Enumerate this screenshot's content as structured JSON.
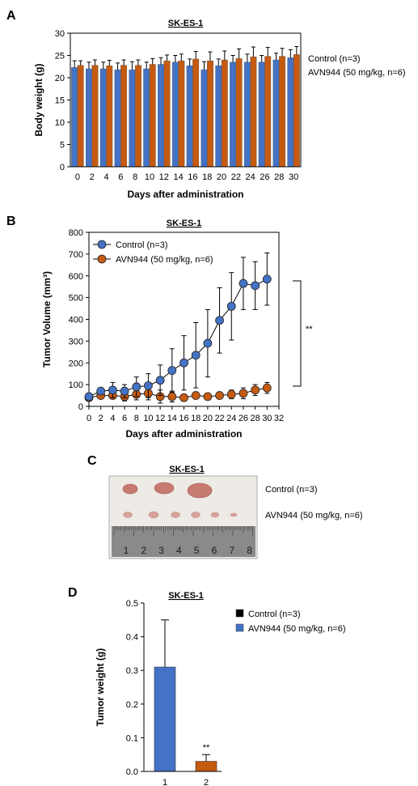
{
  "colors": {
    "blue": "#4472C4",
    "orange": "#C55A11",
    "black": "#000000"
  },
  "chart_data": [
    {
      "panel": "A",
      "type": "bar",
      "title": "SK-ES-1",
      "xlabel": "Days after administration",
      "ylabel": "Body weight (g)",
      "ylim": [
        0,
        30
      ],
      "yticks": [
        "0",
        "5",
        "10",
        "15",
        "20",
        "25",
        "30"
      ],
      "categories": [
        "0",
        "2",
        "4",
        "6",
        "8",
        "10",
        "12",
        "14",
        "16",
        "18",
        "20",
        "22",
        "24",
        "26",
        "28",
        "30"
      ],
      "legend": "right",
      "series": [
        {
          "name": "Control (n=3)",
          "color": "#4472C4",
          "values": [
            22.3,
            22.0,
            22.0,
            21.8,
            21.8,
            22.0,
            23.0,
            23.5,
            22.7,
            21.8,
            22.7,
            23.5,
            23.5,
            23.5,
            24.0,
            24.5
          ],
          "errors": [
            1.5,
            1.5,
            1.5,
            1.5,
            1.8,
            1.5,
            1.5,
            1.5,
            1.5,
            1.8,
            1.5,
            1.5,
            1.8,
            1.5,
            1.5,
            1.8
          ]
        },
        {
          "name": "AVN944 (50 mg/kg, n=6)",
          "color": "#C55A11",
          "values": [
            22.8,
            22.8,
            22.7,
            22.8,
            22.8,
            23.0,
            23.8,
            23.8,
            24.2,
            23.8,
            24.0,
            24.3,
            24.7,
            24.8,
            24.8,
            25.2
          ],
          "errors": [
            1.0,
            1.2,
            1.2,
            1.2,
            1.2,
            1.3,
            1.3,
            1.5,
            1.7,
            2.0,
            2.0,
            2.2,
            2.2,
            2.0,
            1.8,
            1.8
          ]
        }
      ]
    },
    {
      "panel": "B",
      "type": "line",
      "title": "SK-ES-1",
      "xlabel": "Days after administration",
      "ylabel": "Tumor Volume (mm³)",
      "xlim": [
        0,
        32
      ],
      "ylim": [
        0,
        800
      ],
      "xticks": [
        "0",
        "2",
        "4",
        "6",
        "8",
        "10",
        "12",
        "14",
        "16",
        "18",
        "20",
        "22",
        "24",
        "26",
        "28",
        "30",
        "32"
      ],
      "yticks": [
        "0",
        "100",
        "200",
        "300",
        "400",
        "500",
        "600",
        "700",
        "800"
      ],
      "legend": "top-left",
      "annotation": "**",
      "series": [
        {
          "name": "Control (n=3)",
          "color": "#4472C4",
          "x": [
            0,
            2,
            4,
            6,
            8,
            10,
            12,
            14,
            16,
            18,
            20,
            22,
            24,
            26,
            28,
            30
          ],
          "y": [
            45,
            70,
            75,
            70,
            90,
            95,
            120,
            165,
            200,
            235,
            290,
            395,
            460,
            565,
            555,
            585
          ],
          "errors": [
            15,
            15,
            35,
            30,
            45,
            55,
            70,
            100,
            125,
            150,
            155,
            150,
            155,
            120,
            110,
            120
          ]
        },
        {
          "name": "AVN944 (50 mg/kg, n=6)",
          "color": "#C55A11",
          "x": [
            0,
            2,
            4,
            6,
            8,
            10,
            12,
            14,
            16,
            18,
            20,
            22,
            24,
            26,
            28,
            30
          ],
          "y": [
            40,
            50,
            50,
            45,
            55,
            60,
            45,
            45,
            40,
            50,
            45,
            50,
            55,
            60,
            75,
            85
          ],
          "errors": [
            15,
            15,
            15,
            20,
            25,
            30,
            30,
            25,
            10,
            10,
            10,
            15,
            20,
            25,
            25,
            25
          ]
        }
      ]
    },
    {
      "panel": "D",
      "type": "bar",
      "title": "SK-ES-1",
      "ylabel": "Tumor weight (g)",
      "ylim": [
        0,
        0.5
      ],
      "yticks": [
        "0.0",
        "0.1",
        "0.2",
        "0.3",
        "0.4",
        "0.5"
      ],
      "categories": [
        "1",
        "2"
      ],
      "values": [
        0.31,
        0.03
      ],
      "errors": [
        0.14,
        0.02
      ],
      "bar_colors": [
        "#4472C4",
        "#C55A11"
      ],
      "annotation": "**",
      "legend": "right",
      "legend_entries": [
        {
          "name": "Control (n=3)",
          "color": "#000000"
        },
        {
          "name": "AVN944 (50 mg/kg, n=6)",
          "color": "#4472C4"
        }
      ]
    }
  ],
  "panel_c": {
    "panel": "C",
    "title": "SK-ES-1",
    "labels": [
      "Control (n=3)",
      "AVN944 (50 mg/kg, n=6)"
    ],
    "ruler_numbers": [
      "1",
      "2",
      "3",
      "4",
      "5",
      "6",
      "7",
      "8"
    ]
  }
}
